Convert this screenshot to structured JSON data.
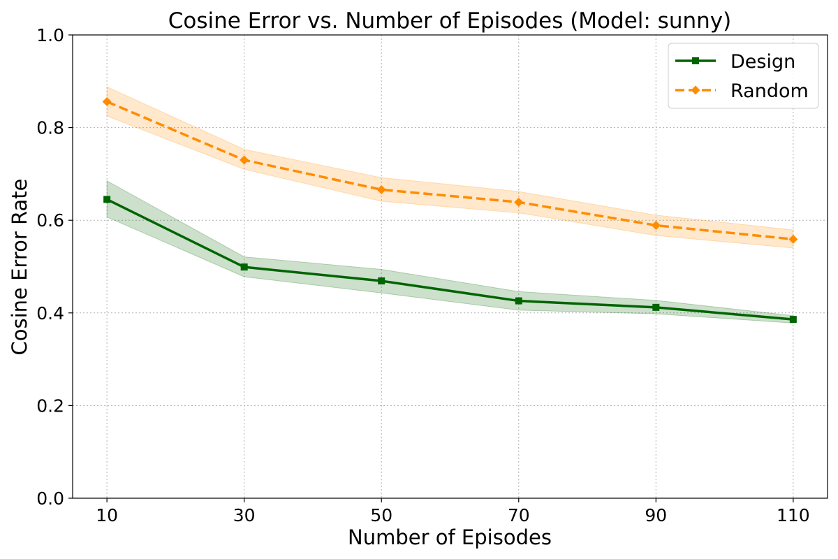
{
  "chart_data": {
    "type": "line",
    "title": "Cosine Error vs. Number of Episodes (Model: sunny)",
    "xlabel": "Number of Episodes",
    "ylabel": "Cosine Error Rate",
    "x": [
      10,
      30,
      50,
      70,
      90,
      110
    ],
    "x_tick_labels": [
      "10",
      "30",
      "50",
      "70",
      "90",
      "110"
    ],
    "xlim": [
      5,
      115
    ],
    "ylim": [
      0.0,
      1.0
    ],
    "y_ticks": [
      0.0,
      0.2,
      0.4,
      0.6,
      0.8,
      1.0
    ],
    "y_tick_labels": [
      "0.0",
      "0.2",
      "0.4",
      "0.6",
      "0.8",
      "1.0"
    ],
    "grid": true,
    "legend_position": "top-right",
    "series": [
      {
        "name": "Design",
        "color": "#006400",
        "line_style": "solid",
        "marker": "square",
        "values": [
          0.645,
          0.499,
          0.469,
          0.426,
          0.412,
          0.386
        ],
        "lower": [
          0.607,
          0.478,
          0.443,
          0.406,
          0.398,
          0.378
        ],
        "upper": [
          0.685,
          0.521,
          0.494,
          0.446,
          0.427,
          0.394
        ]
      },
      {
        "name": "Random",
        "color": "#ff8c00",
        "line_style": "dashed",
        "marker": "diamond",
        "values": [
          0.856,
          0.73,
          0.666,
          0.639,
          0.589,
          0.559
        ],
        "lower": [
          0.825,
          0.71,
          0.641,
          0.616,
          0.567,
          0.54
        ],
        "upper": [
          0.888,
          0.753,
          0.692,
          0.662,
          0.611,
          0.579
        ]
      }
    ]
  }
}
